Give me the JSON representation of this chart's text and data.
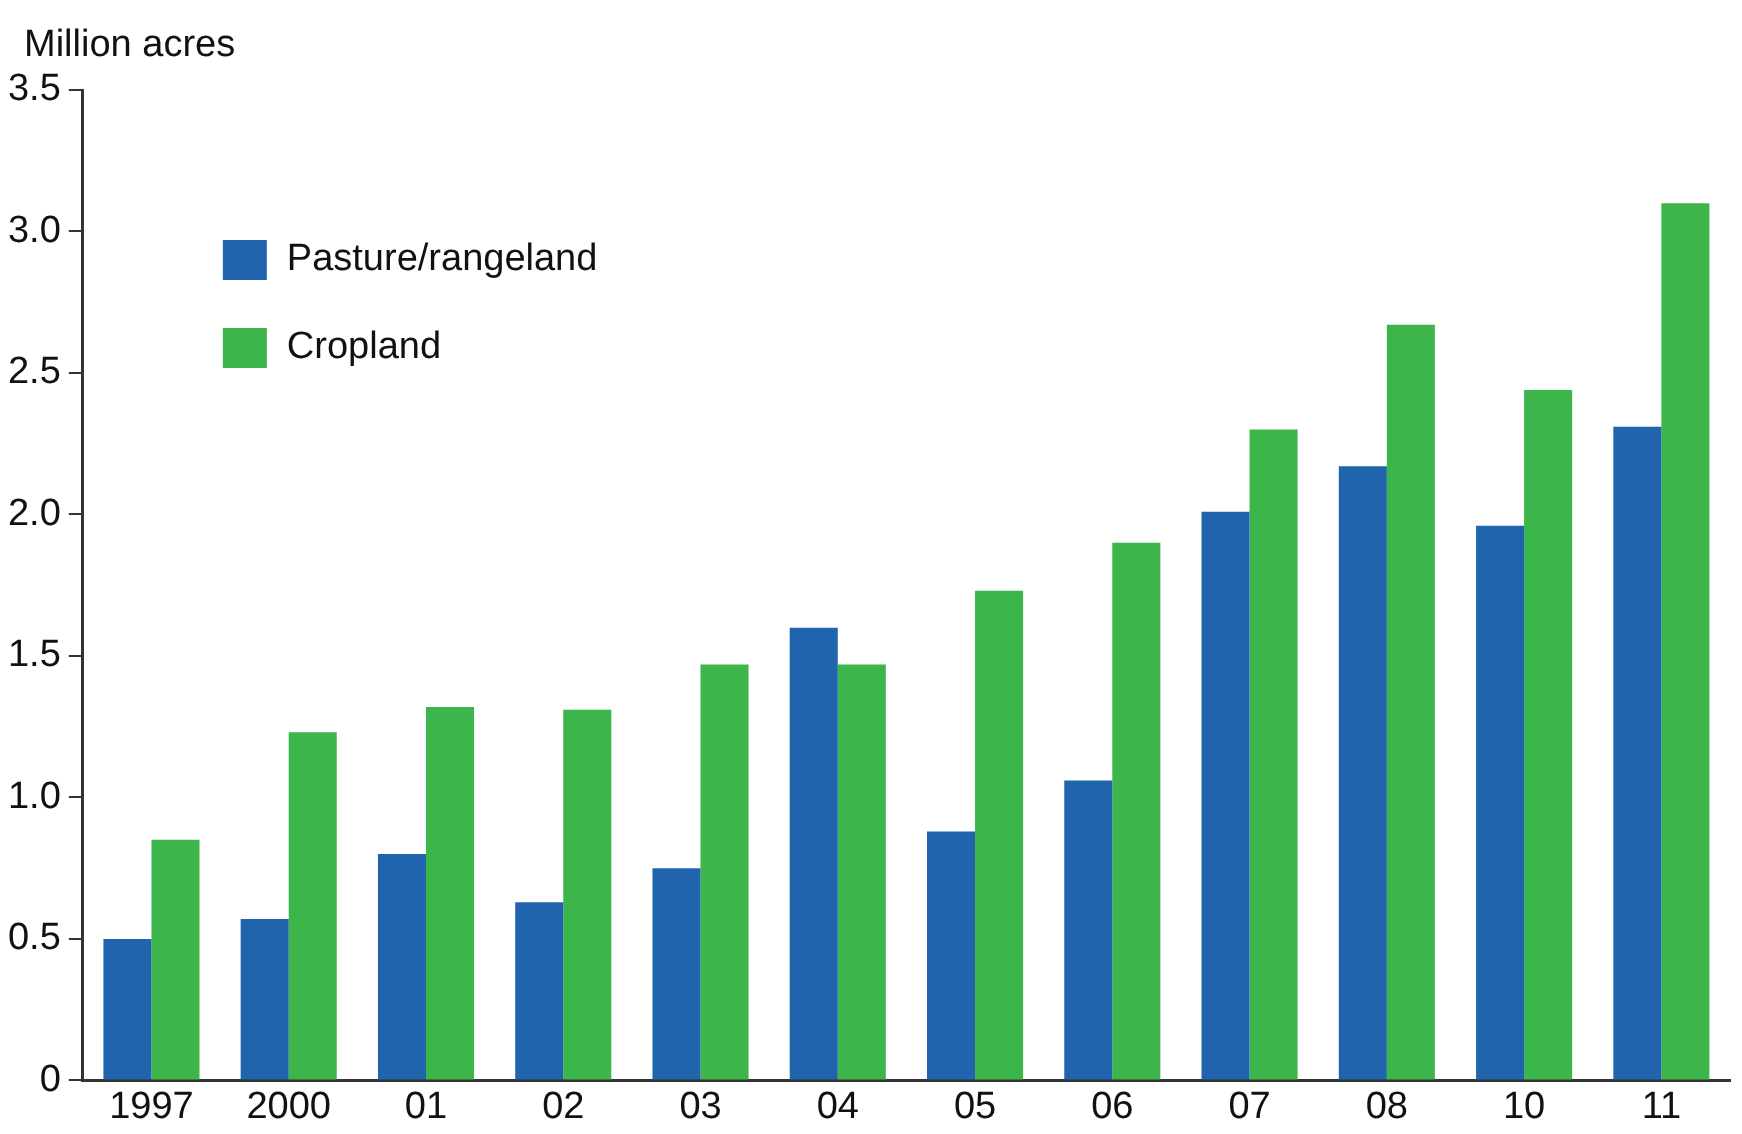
{
  "chart_data": {
    "type": "bar",
    "ylabel": "Million acres",
    "categories": [
      "1997",
      "2000",
      "01",
      "02",
      "03",
      "04",
      "05",
      "06",
      "07",
      "08",
      "10",
      "11"
    ],
    "series": [
      {
        "name": "Pasture/rangeland",
        "color": "#1f64ad",
        "values": [
          0.5,
          0.57,
          0.8,
          0.63,
          0.75,
          1.6,
          0.88,
          1.06,
          2.01,
          2.17,
          1.96,
          2.31
        ]
      },
      {
        "name": "Cropland",
        "color": "#3cb54a",
        "values": [
          0.85,
          1.23,
          1.32,
          1.31,
          1.47,
          1.47,
          1.73,
          1.9,
          2.3,
          2.67,
          2.44,
          3.1
        ]
      }
    ],
    "ylim": [
      0,
      3.5
    ],
    "yticks": [
      {
        "value": 0,
        "label": "0"
      },
      0.5,
      {
        "value": 1,
        "label": "1.0"
      },
      1.5,
      {
        "value": 2,
        "label": "2.0"
      },
      2.5,
      {
        "value": 3,
        "label": "3.0"
      },
      3.5
    ],
    "grid": false,
    "legend": "top left"
  }
}
